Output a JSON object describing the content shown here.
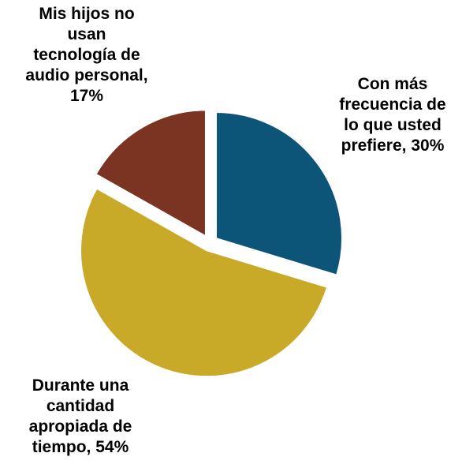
{
  "chart_data": {
    "type": "pie",
    "slices": [
      {
        "label": "Con más\nfrecuencia de\nlo que usted\nprefiere, 30%",
        "value": 30,
        "color": "#0c5478"
      },
      {
        "label": "Durante una\ncantidad\napropiada de\ntiempo, 54%",
        "value": 54,
        "color": "#c9a928"
      },
      {
        "label": "Mis hijos no\nusan\ntecnología de\naudio personal,\n17%",
        "value": 17,
        "color": "#7b3322"
      }
    ],
    "exploded": true,
    "start_angle": "12 o'clock",
    "direction": "clockwise"
  }
}
